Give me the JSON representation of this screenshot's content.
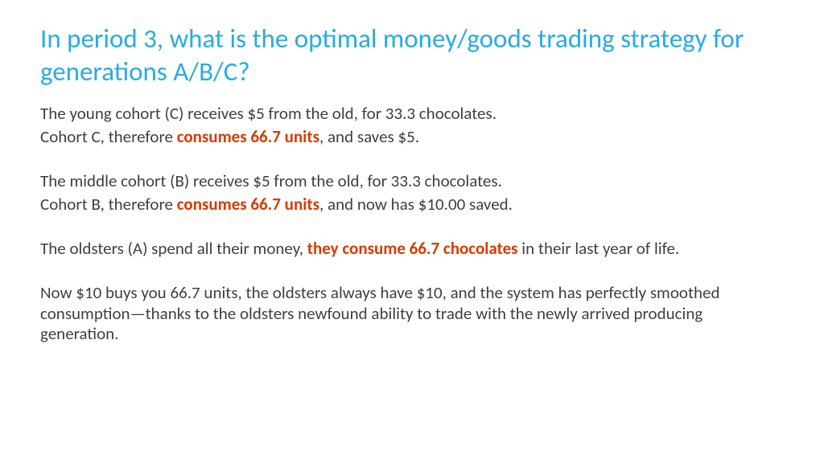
{
  "colors": {
    "title": "#29abe2",
    "body": "#404040",
    "emphasis": "#d83b01",
    "background": "#ffffff"
  },
  "typography": {
    "title_fontsize": 33,
    "body_fontsize": 21,
    "title_weight": 400,
    "emphasis_weight": 700,
    "font_family": "Calibri"
  },
  "title": "In period 3, what is the optimal money/goods trading strategy for generations A/B/C?",
  "lines": {
    "l1": "The young cohort (C) receives $5 from the old, for 33.3 chocolates.",
    "l2a": "Cohort C, therefore ",
    "l2b": "consumes 66.7 units",
    "l2c": ", and saves $5.",
    "l3": "The middle cohort (B) receives $5 from the old, for 33.3 chocolates.",
    "l4a": "Cohort B, therefore ",
    "l4b": "consumes 66.7 units",
    "l4c": ", and now has $10.00 saved.",
    "l5a": "The oldsters (A) spend all their money, ",
    "l5b": "they consume 66.7 chocolates",
    "l5c": " in their last year of life.",
    "l6": "Now $10 buys you 66.7 units, the oldsters always have $10, and the system has perfectly smoothed consumption—thanks to the oldsters newfound ability to trade with the newly arrived producing generation."
  }
}
